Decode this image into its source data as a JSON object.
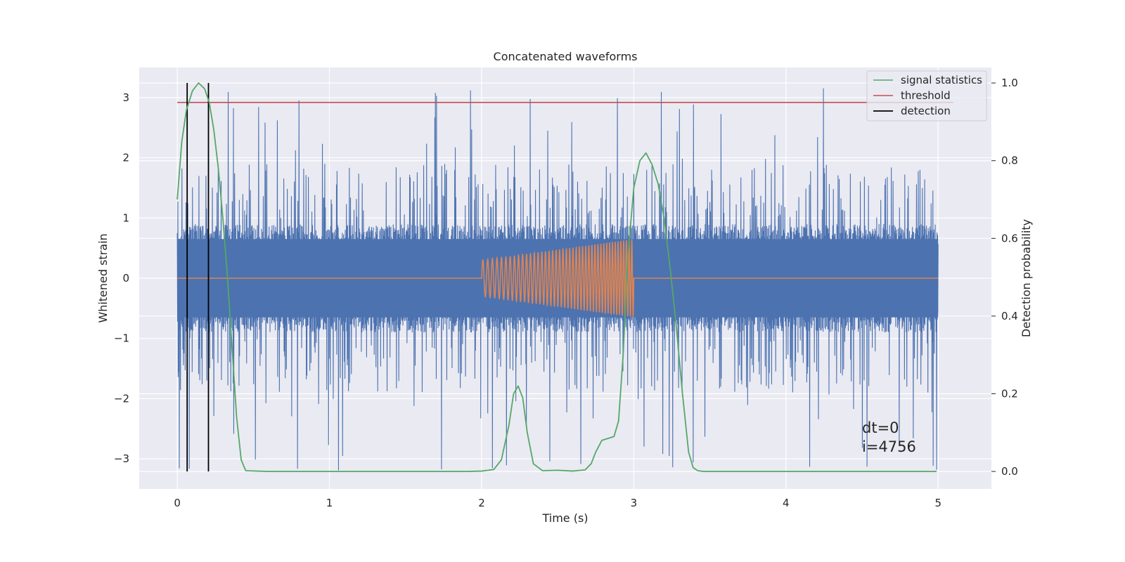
{
  "chart_data": {
    "type": "line",
    "title": "Concatenated waveforms",
    "xlabel": "Time (s)",
    "ylabel": "Whitened strain",
    "y2label": "Detection probability",
    "xlim": [
      -0.25,
      5.35
    ],
    "ylim": [
      -3.5,
      3.5
    ],
    "y2lim": [
      -0.045,
      1.04
    ],
    "xticks": [
      0,
      1,
      2,
      3,
      4,
      5
    ],
    "yticks": [
      -3,
      -2,
      -1,
      0,
      1,
      2,
      3
    ],
    "y2ticks": [
      0.0,
      0.2,
      0.4,
      0.6,
      0.8,
      1.0
    ],
    "xtick_labels": [
      "0",
      "1",
      "2",
      "3",
      "4",
      "5"
    ],
    "ytick_labels": [
      "−3",
      "−2",
      "−1",
      "0",
      "1",
      "2",
      "3"
    ],
    "y2tick_labels": [
      "0.0",
      "0.2",
      "0.4",
      "0.6",
      "0.8",
      "1.0"
    ],
    "grid": true,
    "legend_position": "top-right",
    "colors": {
      "plot_bg": "#eaeaf2",
      "grid": "#ffffff",
      "noise": "#4c72b0",
      "injection": "#dd8452",
      "statistics": "#55a868",
      "threshold": "#c44e52",
      "detection": "#000000"
    },
    "series": [
      {
        "name": "signal statistics",
        "axis": "right",
        "x": [
          0.0,
          0.03,
          0.06,
          0.1,
          0.14,
          0.18,
          0.21,
          0.24,
          0.27,
          0.3,
          0.33,
          0.36,
          0.39,
          0.42,
          0.45,
          0.6,
          1.0,
          1.5,
          1.9,
          2.0,
          2.08,
          2.13,
          2.18,
          2.21,
          2.24,
          2.27,
          2.3,
          2.34,
          2.4,
          2.5,
          2.6,
          2.68,
          2.72,
          2.75,
          2.79,
          2.83,
          2.87,
          2.9,
          2.93,
          2.96,
          3.0,
          3.04,
          3.08,
          3.12,
          3.16,
          3.2,
          3.24,
          3.28,
          3.32,
          3.36,
          3.39,
          3.42,
          3.46,
          3.5,
          4.0,
          4.5,
          4.99
        ],
        "y": [
          0.7,
          0.85,
          0.93,
          0.98,
          1.0,
          0.985,
          0.95,
          0.88,
          0.78,
          0.65,
          0.5,
          0.32,
          0.14,
          0.03,
          0.002,
          0.0,
          0.0,
          0.0,
          0.0,
          0.001,
          0.005,
          0.03,
          0.12,
          0.2,
          0.22,
          0.19,
          0.1,
          0.02,
          0.002,
          0.003,
          0.001,
          0.004,
          0.02,
          0.05,
          0.08,
          0.085,
          0.09,
          0.13,
          0.3,
          0.55,
          0.73,
          0.8,
          0.82,
          0.79,
          0.74,
          0.65,
          0.52,
          0.37,
          0.2,
          0.05,
          0.01,
          0.002,
          0.0,
          0.0,
          0.0,
          0.0,
          0.0
        ]
      },
      {
        "name": "threshold",
        "axis": "right",
        "x": [
          0.0,
          5.1
        ],
        "y": [
          0.95,
          0.95
        ]
      },
      {
        "name": "detection",
        "axis": "right",
        "x": [
          0.065,
          0.205
        ],
        "ymin": 0.0,
        "ymax": 1.0
      },
      {
        "name": "",
        "axis": "left",
        "kind": "noise",
        "x_range": [
          0.0,
          5.0
        ],
        "core_band": [
          -0.65,
          0.65
        ],
        "peak_max": 3.2,
        "peak_min": -3.2
      },
      {
        "name": "",
        "axis": "left",
        "kind": "chirp",
        "x_range": [
          2.0,
          3.0
        ],
        "amplitude_start": 0.3,
        "amplitude_end": 0.65,
        "cycles": 44,
        "baseline": 0.0
      }
    ],
    "annotations": [
      "dt=0",
      "i=4756"
    ]
  }
}
